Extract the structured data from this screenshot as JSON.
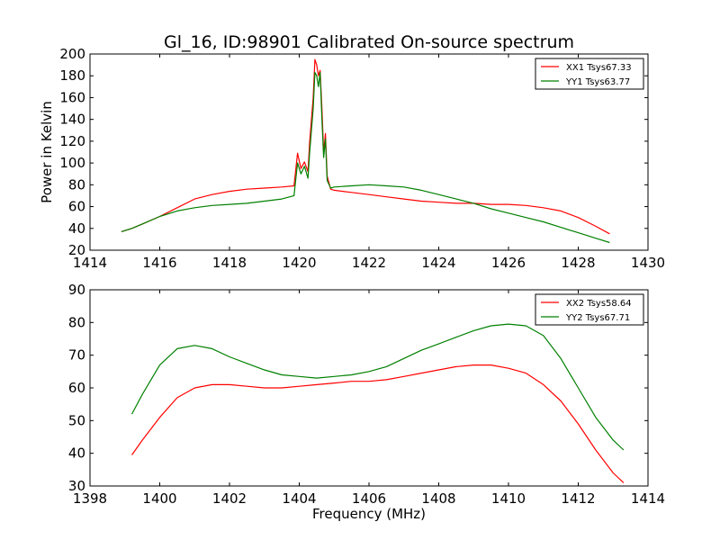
{
  "figure": {
    "title": "Gl_16, ID:98901 Calibrated On-source spectrum",
    "background": "#ffffff"
  },
  "chart_data": [
    {
      "type": "line",
      "title": "Gl_16, ID:98901 Calibrated On-source spectrum",
      "xlabel": "",
      "ylabel": "Power in Kelvin",
      "xlim": [
        1414,
        1430
      ],
      "ylim": [
        20,
        200
      ],
      "xticks": [
        1414,
        1416,
        1418,
        1420,
        1422,
        1424,
        1426,
        1428,
        1430
      ],
      "yticks": [
        20,
        40,
        60,
        80,
        100,
        120,
        140,
        160,
        180,
        200
      ],
      "legend_position": "top-right",
      "grid": false,
      "series": [
        {
          "name": "XX1 Tsys67.33",
          "color": "#ff0000",
          "x": [
            1414.9,
            1415.2,
            1415.5,
            1416.0,
            1416.5,
            1417.0,
            1417.5,
            1418.0,
            1418.5,
            1419.0,
            1419.5,
            1419.85,
            1419.95,
            1420.05,
            1420.15,
            1420.25,
            1420.3,
            1420.4,
            1420.45,
            1420.5,
            1420.55,
            1420.6,
            1420.65,
            1420.7,
            1420.75,
            1420.8,
            1420.9,
            1421.0,
            1421.5,
            1422.0,
            1422.5,
            1423.0,
            1423.5,
            1424.0,
            1424.5,
            1425.0,
            1425.5,
            1426.0,
            1426.5,
            1427.0,
            1427.5,
            1428.0,
            1428.5,
            1428.9
          ],
          "y": [
            37,
            40,
            44,
            51,
            59,
            67,
            71,
            74,
            76,
            77,
            78,
            79,
            109,
            95,
            101,
            92,
            120,
            160,
            195,
            190,
            180,
            185,
            150,
            110,
            127,
            88,
            76,
            75,
            73,
            71,
            69,
            67,
            65,
            64,
            63,
            63,
            62,
            62,
            61,
            59,
            56,
            50,
            42,
            35
          ]
        },
        {
          "name": "YY1 Tsys63.77",
          "color": "#008000",
          "x": [
            1414.9,
            1415.2,
            1415.5,
            1416.0,
            1416.5,
            1417.0,
            1417.5,
            1418.0,
            1418.5,
            1419.0,
            1419.5,
            1419.85,
            1419.95,
            1420.05,
            1420.15,
            1420.25,
            1420.3,
            1420.4,
            1420.45,
            1420.5,
            1420.55,
            1420.6,
            1420.65,
            1420.7,
            1420.75,
            1420.8,
            1420.9,
            1421.0,
            1421.5,
            1422.0,
            1422.5,
            1423.0,
            1423.5,
            1424.0,
            1424.5,
            1425.0,
            1425.5,
            1426.0,
            1426.5,
            1427.0,
            1427.5,
            1428.0,
            1428.5,
            1428.9
          ],
          "y": [
            37,
            40,
            44,
            51,
            56,
            59,
            61,
            62,
            63,
            65,
            67,
            70,
            100,
            90,
            97,
            86,
            110,
            150,
            183,
            180,
            170,
            183,
            140,
            105,
            122,
            84,
            77,
            78,
            79,
            80,
            79,
            78,
            75,
            71,
            67,
            63,
            58,
            54,
            50,
            46,
            41,
            36,
            31,
            27
          ]
        }
      ]
    },
    {
      "type": "line",
      "title": "",
      "xlabel": "Frequency (MHz)",
      "ylabel": "",
      "xlim": [
        1398,
        1414
      ],
      "ylim": [
        30,
        90
      ],
      "xticks": [
        1398,
        1400,
        1402,
        1404,
        1406,
        1408,
        1410,
        1412,
        1414
      ],
      "yticks": [
        30,
        40,
        50,
        60,
        70,
        80,
        90
      ],
      "legend_position": "top-right",
      "grid": false,
      "series": [
        {
          "name": "XX2 Tsys58.64",
          "color": "#ff0000",
          "x": [
            1399.2,
            1399.5,
            1400.0,
            1400.5,
            1401.0,
            1401.5,
            1402.0,
            1402.5,
            1403.0,
            1403.5,
            1404.0,
            1404.5,
            1405.0,
            1405.5,
            1406.0,
            1406.5,
            1407.0,
            1407.5,
            1408.0,
            1408.5,
            1409.0,
            1409.5,
            1410.0,
            1410.5,
            1411.0,
            1411.5,
            1412.0,
            1412.5,
            1413.0,
            1413.3
          ],
          "y": [
            39.5,
            44,
            51,
            57,
            60,
            61,
            61,
            60.5,
            60,
            60,
            60.5,
            61,
            61.5,
            62,
            62,
            62.5,
            63.5,
            64.5,
            65.5,
            66.5,
            67,
            67,
            66,
            64.5,
            61,
            56,
            49,
            41,
            34,
            31
          ]
        },
        {
          "name": "YY2 Tsys67.71",
          "color": "#008000",
          "x": [
            1399.2,
            1399.5,
            1400.0,
            1400.5,
            1401.0,
            1401.5,
            1402.0,
            1402.5,
            1403.0,
            1403.5,
            1404.0,
            1404.5,
            1405.0,
            1405.5,
            1406.0,
            1406.5,
            1407.0,
            1407.5,
            1408.0,
            1408.5,
            1409.0,
            1409.5,
            1410.0,
            1410.5,
            1411.0,
            1411.5,
            1412.0,
            1412.5,
            1413.0,
            1413.3
          ],
          "y": [
            52,
            58,
            67,
            72,
            73,
            72,
            69.5,
            67.5,
            65.5,
            64,
            63.5,
            63,
            63.5,
            64,
            65,
            66.5,
            69,
            71.5,
            73.5,
            75.5,
            77.5,
            79,
            79.5,
            79,
            76,
            69,
            60,
            51,
            44,
            41
          ]
        }
      ]
    }
  ]
}
